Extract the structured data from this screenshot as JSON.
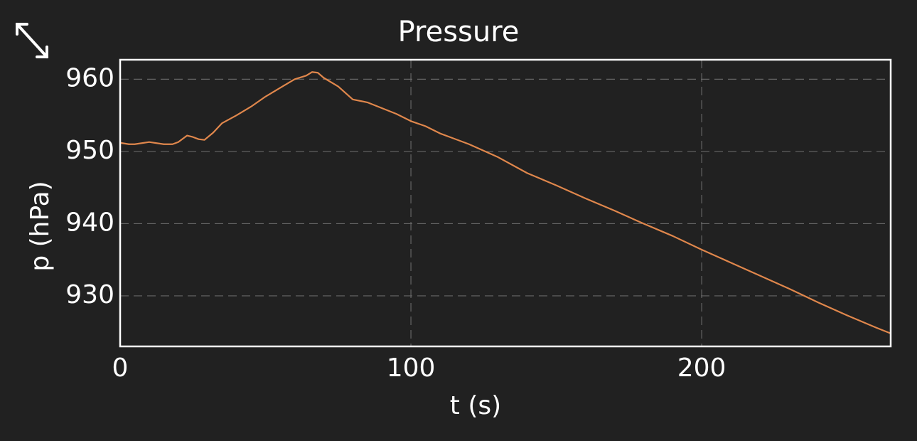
{
  "chart_data": {
    "type": "line",
    "title": "Pressure",
    "x_label": "t (s)",
    "y_label": "p (hPa)",
    "x": [
      0,
      3,
      5,
      10,
      15,
      18,
      20,
      23,
      25,
      27,
      29,
      32,
      35,
      40,
      45,
      50,
      55,
      60,
      64,
      66,
      68,
      70,
      75,
      80,
      85,
      90,
      95,
      100,
      105,
      110,
      120,
      130,
      140,
      150,
      160,
      170,
      180,
      190,
      200,
      210,
      220,
      230,
      240,
      250,
      260,
      265
    ],
    "series": [
      {
        "name": "p",
        "color": "#e0874c",
        "values": [
          951.2,
          951.0,
          951.0,
          951.3,
          951.0,
          951.0,
          951.3,
          952.2,
          952.0,
          951.7,
          951.6,
          952.6,
          953.9,
          955.0,
          956.2,
          957.6,
          958.8,
          960.0,
          960.5,
          961.0,
          960.9,
          960.2,
          959.0,
          957.2,
          956.8,
          956.0,
          955.2,
          954.2,
          953.5,
          952.5,
          951.0,
          949.2,
          947.0,
          945.3,
          943.5,
          941.8,
          940.0,
          938.3,
          936.4,
          934.6,
          932.8,
          931.0,
          929.1,
          927.3,
          925.6,
          924.8
        ]
      }
    ],
    "xlim": [
      0,
      265
    ],
    "ylim": [
      923,
      962.7
    ],
    "xticks": [
      0,
      100,
      200
    ],
    "yticks": [
      930,
      940,
      950,
      960
    ],
    "grid": true
  }
}
